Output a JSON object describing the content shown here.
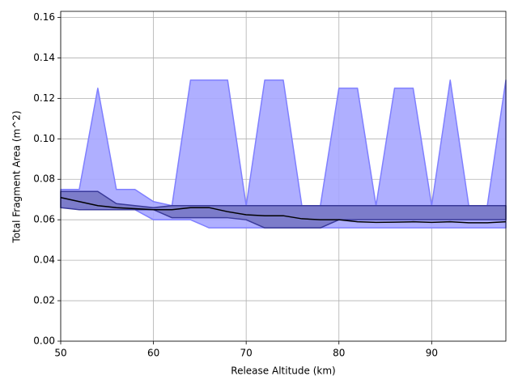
{
  "chart_data": {
    "type": "line",
    "xlabel": "Release Altitude (km)",
    "ylabel": "Total Fragment Area (m^2)",
    "x": [
      50,
      52,
      54,
      56,
      58,
      60,
      62,
      64,
      66,
      68,
      70,
      72,
      74,
      76,
      78,
      80,
      82,
      84,
      86,
      88,
      90,
      92,
      94,
      96,
      98
    ],
    "bands": [
      {
        "color": "#a6a6ff",
        "edge": "#7f7fff",
        "upper": [
          0.075,
          0.075,
          0.125,
          0.075,
          0.075,
          0.069,
          0.067,
          0.129,
          0.129,
          0.129,
          0.067,
          0.129,
          0.129,
          0.067,
          0.067,
          0.125,
          0.125,
          0.067,
          0.125,
          0.125,
          0.067,
          0.129,
          0.067,
          0.067,
          0.129
        ],
        "lower": [
          0.066,
          0.066,
          0.065,
          0.065,
          0.065,
          0.06,
          0.06,
          0.06,
          0.056,
          0.056,
          0.056,
          0.056,
          0.056,
          0.056,
          0.056,
          0.056,
          0.056,
          0.056,
          0.056,
          0.056,
          0.056,
          0.056,
          0.056,
          0.056,
          0.056
        ]
      },
      {
        "color": "#7777c4",
        "edge": "#3a3a9a",
        "upper": [
          0.074,
          0.074,
          0.074,
          0.068,
          0.067,
          0.066,
          0.067,
          0.067,
          0.067,
          0.067,
          0.067,
          0.067,
          0.067,
          0.067,
          0.067,
          0.067,
          0.067,
          0.067,
          0.067,
          0.067,
          0.067,
          0.067,
          0.067,
          0.067,
          0.067
        ],
        "lower": [
          0.066,
          0.065,
          0.065,
          0.065,
          0.065,
          0.065,
          0.061,
          0.061,
          0.061,
          0.061,
          0.06,
          0.056,
          0.056,
          0.056,
          0.056,
          0.06,
          0.06,
          0.06,
          0.06,
          0.06,
          0.06,
          0.06,
          0.06,
          0.06,
          0.06
        ]
      }
    ],
    "series": [
      {
        "color": "#000000",
        "values": [
          0.071,
          0.069,
          0.067,
          0.066,
          0.0655,
          0.065,
          0.065,
          0.066,
          0.066,
          0.064,
          0.0625,
          0.062,
          0.062,
          0.0605,
          0.06,
          0.06,
          0.059,
          0.0587,
          0.0588,
          0.059,
          0.0587,
          0.059,
          0.0585,
          0.0585,
          0.059
        ]
      }
    ],
    "xlim": [
      50,
      98
    ],
    "ylim": [
      0,
      0.163
    ],
    "xticks": [
      50,
      60,
      70,
      80,
      90
    ],
    "yticks": [
      {
        "value": 0,
        "label": "0.00"
      },
      {
        "value": 0.02,
        "label": "0.02"
      },
      {
        "value": 0.04,
        "label": "0.04"
      },
      {
        "value": 0.06,
        "label": "0.06"
      },
      {
        "value": 0.08,
        "label": "0.08"
      },
      {
        "value": 0.1,
        "label": "0.10"
      },
      {
        "value": 0.12,
        "label": "0.12"
      },
      {
        "value": 0.14,
        "label": "0.14"
      },
      {
        "value": 0.16,
        "label": "0.16"
      }
    ],
    "grid": true
  }
}
